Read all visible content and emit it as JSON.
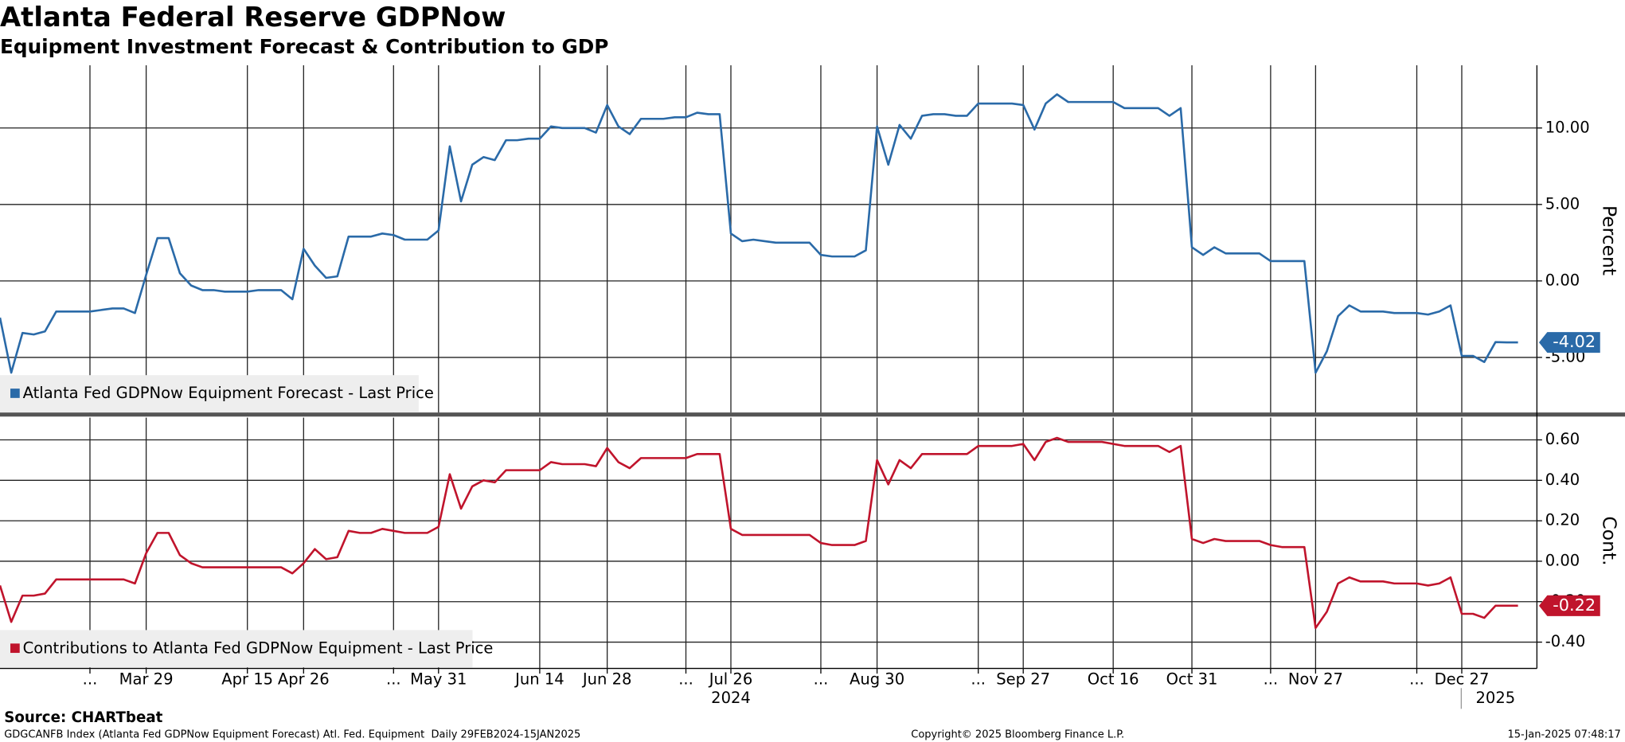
{
  "chart_data": [
    {
      "type": "line",
      "title": "Atlanta Federal Reserve GDPNow",
      "subtitle": "Equipment Investment Forecast & Contribution to GDP",
      "ylabel": "Percent",
      "ylim": [
        -8.6,
        14.1
      ],
      "yticks": [
        {
          "value": -5,
          "label": "-5.00"
        },
        {
          "value": 0,
          "label": "0.00"
        },
        {
          "value": 5,
          "label": "5.00"
        },
        {
          "value": 10,
          "label": "10.00"
        }
      ],
      "grid": true,
      "series": [
        {
          "name": "Atlanta Fed GDPNow Equipment Forecast - Last Price",
          "color": "#2a6aa8",
          "values": [
            -2.4,
            -6.0,
            -3.4,
            -3.5,
            -3.3,
            -2.0,
            -2.0,
            -2.0,
            -2.0,
            -1.9,
            -1.8,
            -1.8,
            -2.1,
            0.4,
            2.8,
            2.8,
            0.5,
            -0.3,
            -0.6,
            -0.6,
            -0.7,
            -0.7,
            -0.7,
            -0.6,
            -0.6,
            -0.6,
            -1.2,
            2.1,
            1.0,
            0.2,
            0.3,
            2.9,
            2.9,
            2.9,
            3.1,
            3.0,
            2.7,
            2.7,
            2.7,
            3.3,
            8.8,
            5.2,
            7.6,
            8.1,
            7.9,
            9.2,
            9.2,
            9.3,
            9.3,
            10.1,
            10.0,
            10.0,
            10.0,
            9.7,
            11.5,
            10.1,
            9.6,
            10.6,
            10.6,
            10.6,
            10.7,
            10.7,
            11.0,
            10.9,
            10.9,
            3.1,
            2.6,
            2.7,
            2.6,
            2.5,
            2.5,
            2.5,
            2.5,
            1.7,
            1.6,
            1.6,
            1.6,
            2.0,
            10.1,
            7.6,
            10.2,
            9.3,
            10.8,
            10.9,
            10.9,
            10.8,
            10.8,
            11.6,
            11.6,
            11.6,
            11.6,
            11.5,
            9.9,
            11.6,
            12.2,
            11.7,
            11.7,
            11.7,
            11.7,
            11.7,
            11.3,
            11.3,
            11.3,
            11.3,
            10.8,
            11.3,
            2.2,
            1.7,
            2.2,
            1.8,
            1.8,
            1.8,
            1.8,
            1.3,
            1.3,
            1.3,
            1.3,
            -6.0,
            -4.6,
            -2.3,
            -1.6,
            -2.0,
            -2.0,
            -2.0,
            -2.1,
            -2.1,
            -2.1,
            -2.2,
            -2.0,
            -1.6,
            -4.9,
            -4.9,
            -5.3,
            -4.0,
            -4.02,
            -4.02
          ]
        }
      ]
    },
    {
      "type": "line",
      "ylabel": "Cont.",
      "ylim": [
        -0.53,
        0.71
      ],
      "yticks": [
        {
          "value": -0.4,
          "label": "-0.40"
        },
        {
          "value": -0.2,
          "label": "-0.20"
        },
        {
          "value": 0,
          "label": "0.00"
        },
        {
          "value": 0.2,
          "label": "0.20"
        },
        {
          "value": 0.4,
          "label": "0.40"
        },
        {
          "value": 0.6,
          "label": "0.60"
        }
      ],
      "grid": true,
      "categories": [
        null,
        null,
        null,
        null,
        null,
        null,
        null,
        null,
        "...",
        null,
        null,
        null,
        null,
        "Mar 29",
        null,
        null,
        null,
        null,
        null,
        null,
        null,
        null,
        "Apr 15",
        null,
        null,
        null,
        null,
        "Apr 26",
        null,
        null,
        null,
        null,
        null,
        null,
        null,
        "...",
        null,
        null,
        null,
        "May 31",
        null,
        null,
        null,
        null,
        null,
        null,
        null,
        null,
        "Jun 14",
        null,
        null,
        null,
        null,
        null,
        "Jun 28",
        null,
        null,
        null,
        null,
        null,
        null,
        "...",
        null,
        null,
        null,
        "Jul 26",
        null,
        null,
        null,
        null,
        null,
        null,
        null,
        "...",
        null,
        null,
        null,
        null,
        "Aug 30",
        null,
        null,
        null,
        null,
        null,
        null,
        null,
        null,
        "...",
        null,
        null,
        null,
        "Sep 27",
        null,
        null,
        null,
        null,
        null,
        null,
        null,
        "Oct 16",
        null,
        null,
        null,
        null,
        null,
        null,
        "Oct 31",
        null,
        null,
        null,
        null,
        null,
        null,
        "...",
        null,
        null,
        null,
        "Nov 27",
        null,
        null,
        null,
        null,
        null,
        null,
        null,
        null,
        "...",
        null,
        null,
        null,
        "Dec 27",
        null,
        null,
        null,
        null,
        null
      ],
      "year_categories": [
        null,
        null,
        null,
        null,
        null,
        null,
        null,
        null,
        null,
        null,
        null,
        null,
        null,
        null,
        null,
        null,
        null,
        null,
        null,
        null,
        null,
        null,
        null,
        null,
        null,
        null,
        null,
        null,
        null,
        null,
        null,
        null,
        null,
        null,
        null,
        null,
        null,
        null,
        null,
        null,
        null,
        null,
        null,
        null,
        null,
        null,
        null,
        null,
        null,
        null,
        null,
        null,
        null,
        null,
        null,
        null,
        null,
        null,
        null,
        null,
        null,
        null,
        null,
        null,
        null,
        "2024",
        null,
        null,
        null,
        null,
        null,
        null,
        null,
        null,
        null,
        null,
        null,
        null,
        null,
        null,
        null,
        null,
        null,
        null,
        null,
        null,
        null,
        null,
        null,
        null,
        null,
        null,
        null,
        null,
        null,
        null,
        null,
        null,
        null,
        null,
        null,
        null,
        null,
        null,
        null,
        null,
        null,
        null,
        null,
        null,
        null,
        null,
        null,
        null,
        null,
        null,
        null,
        null,
        null,
        null,
        null,
        null,
        null,
        null,
        null,
        null,
        null,
        null,
        null,
        null,
        null,
        null,
        null,
        "2025",
        null,
        null
      ],
      "series": [
        {
          "name": "Contributions to Atlanta Fed GDPNow Equipment - Last Price",
          "color": "#c0142c",
          "values": [
            -0.12,
            -0.3,
            -0.17,
            -0.17,
            -0.16,
            -0.09,
            -0.09,
            -0.09,
            -0.09,
            -0.09,
            -0.09,
            -0.09,
            -0.11,
            0.04,
            0.14,
            0.14,
            0.03,
            -0.01,
            -0.03,
            -0.03,
            -0.03,
            -0.03,
            -0.03,
            -0.03,
            -0.03,
            -0.03,
            -0.06,
            -0.01,
            0.06,
            0.01,
            0.02,
            0.15,
            0.14,
            0.14,
            0.16,
            0.15,
            0.14,
            0.14,
            0.14,
            0.17,
            0.43,
            0.26,
            0.37,
            0.4,
            0.39,
            0.45,
            0.45,
            0.45,
            0.45,
            0.49,
            0.48,
            0.48,
            0.48,
            0.47,
            0.56,
            0.49,
            0.46,
            0.51,
            0.51,
            0.51,
            0.51,
            0.51,
            0.53,
            0.53,
            0.53,
            0.16,
            0.13,
            0.13,
            0.13,
            0.13,
            0.13,
            0.13,
            0.13,
            0.09,
            0.08,
            0.08,
            0.08,
            0.1,
            0.5,
            0.38,
            0.5,
            0.46,
            0.53,
            0.53,
            0.53,
            0.53,
            0.53,
            0.57,
            0.57,
            0.57,
            0.57,
            0.58,
            0.5,
            0.59,
            0.61,
            0.59,
            0.59,
            0.59,
            0.59,
            0.58,
            0.57,
            0.57,
            0.57,
            0.57,
            0.54,
            0.57,
            0.11,
            0.09,
            0.11,
            0.1,
            0.1,
            0.1,
            0.1,
            0.08,
            0.07,
            0.07,
            0.07,
            -0.33,
            -0.25,
            -0.11,
            -0.08,
            -0.1,
            -0.1,
            -0.1,
            -0.11,
            -0.11,
            -0.11,
            -0.12,
            -0.11,
            -0.08,
            -0.26,
            -0.26,
            -0.28,
            -0.22,
            -0.22,
            -0.22
          ]
        }
      ]
    }
  ],
  "footer": {
    "source": "Source: CHARTbeat",
    "left": "GDGCANFB Index (Atlanta Fed GDPNow Equipment Forecast) Atl. Fed. Equipment  Daily 29FEB2024-15JAN2025",
    "center": "Copyright© 2025 Bloomberg Finance L.P.",
    "right": "15-Jan-2025 07:48:17"
  }
}
